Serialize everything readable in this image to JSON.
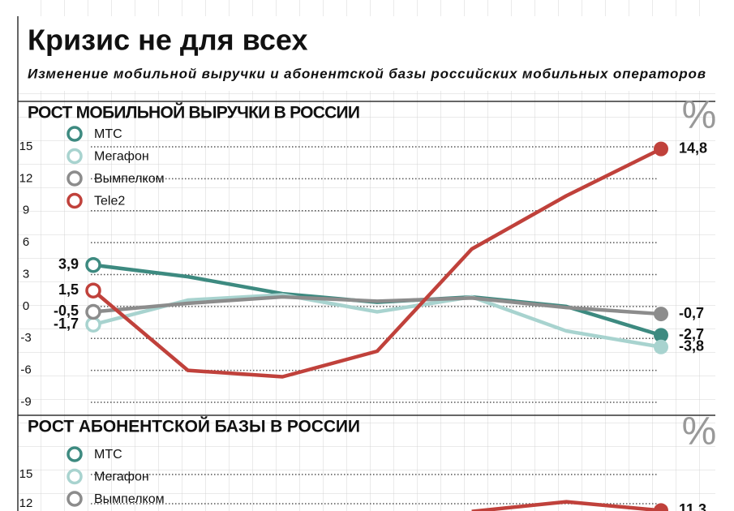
{
  "header": {
    "title": "Кризис не для всех",
    "subtitle": "Изменение мобильной выручки и абонентской базы российских мобильных операторов"
  },
  "chart_data": [
    {
      "type": "line",
      "title": "РОСТ МОБИЛЬНОЙ ВЫРУЧКИ В РОССИИ",
      "unit": "%",
      "ylim": [
        -9,
        15
      ],
      "yticks": [
        15,
        12,
        9,
        6,
        3,
        0,
        -3,
        -6,
        -9
      ],
      "grid": true,
      "series": [
        {
          "name": "МТС",
          "color": "#3d8a80",
          "values": [
            3.9,
            2.8,
            1.2,
            0.4,
            0.9,
            0,
            -2.7
          ],
          "value_labels": [
            "3,9",
            null,
            null,
            null,
            null,
            null,
            "-2,7"
          ]
        },
        {
          "name": "Мегафон",
          "color": "#a8d3cf",
          "values": [
            -1.7,
            0.6,
            1.1,
            -0.5,
            0.9,
            -2.3,
            -3.8
          ],
          "value_labels": [
            "-1,7",
            null,
            null,
            null,
            null,
            null,
            "-3,8"
          ]
        },
        {
          "name": "Вымпелком",
          "color": "#8c8c8c",
          "values": [
            -0.5,
            0.3,
            0.9,
            0.5,
            0.8,
            -0.1,
            -0.7
          ],
          "value_labels": [
            "-0,5",
            null,
            null,
            null,
            null,
            null,
            "-0,7"
          ]
        },
        {
          "name": "Tele2",
          "color": "#c0413b",
          "values": [
            1.5,
            -6.0,
            -6.6,
            -4.2,
            5.4,
            10.4,
            14.8
          ],
          "value_labels": [
            "1,5",
            null,
            null,
            null,
            null,
            null,
            "14,8"
          ]
        }
      ]
    },
    {
      "type": "line",
      "title": "РОСТ АБОНЕНТСКОЙ БАЗЫ В РОССИИ",
      "unit": "%",
      "ylim": [
        -9,
        15
      ],
      "yticks": [
        15,
        12
      ],
      "grid": true,
      "series": [
        {
          "name": "МТС",
          "color": "#3d8a80",
          "values": [
            null,
            null,
            null,
            null,
            null,
            null,
            null
          ]
        },
        {
          "name": "Мегафон",
          "color": "#a8d3cf",
          "values": [
            null,
            null,
            null,
            null,
            null,
            null,
            null
          ]
        },
        {
          "name": "Вымпелком",
          "color": "#8c8c8c",
          "values": [
            null,
            null,
            null,
            null,
            null,
            null,
            null
          ]
        },
        {
          "color": "#c0413b",
          "values": [
            null,
            null,
            null,
            null,
            11.2,
            12.2,
            11.3
          ],
          "value_labels": [
            null,
            null,
            null,
            null,
            null,
            null,
            "11,3"
          ]
        }
      ]
    }
  ]
}
